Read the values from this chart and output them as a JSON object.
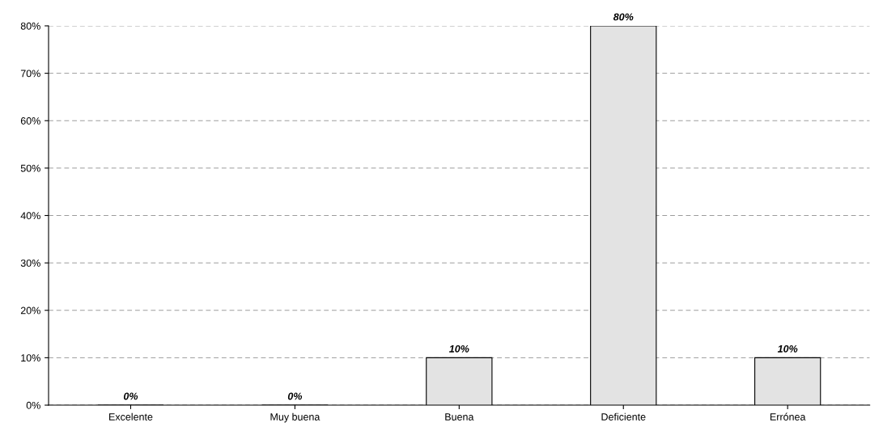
{
  "chart_data": {
    "type": "bar",
    "categories": [
      "Excelente",
      "Muy buena",
      "Buena",
      "Deficiente",
      "Errónea"
    ],
    "values": [
      0,
      0,
      10,
      80,
      10
    ],
    "value_labels": [
      "0%",
      "0%",
      "10%",
      "80%",
      "10%"
    ],
    "color": "#e3e3e3",
    "ylim": [
      0,
      80
    ],
    "yticks": [
      {
        "value": 0,
        "label": "0%"
      },
      {
        "value": 10,
        "label": "10%"
      },
      {
        "value": 20,
        "label": "20%"
      },
      {
        "value": 30,
        "label": "30%"
      },
      {
        "value": 40,
        "label": "40%"
      },
      {
        "value": 50,
        "label": "50%"
      },
      {
        "value": 60,
        "label": "60%"
      },
      {
        "value": 70,
        "label": "70%"
      },
      {
        "value": 80,
        "label": "80%"
      }
    ],
    "grid": "y",
    "legend": false
  }
}
